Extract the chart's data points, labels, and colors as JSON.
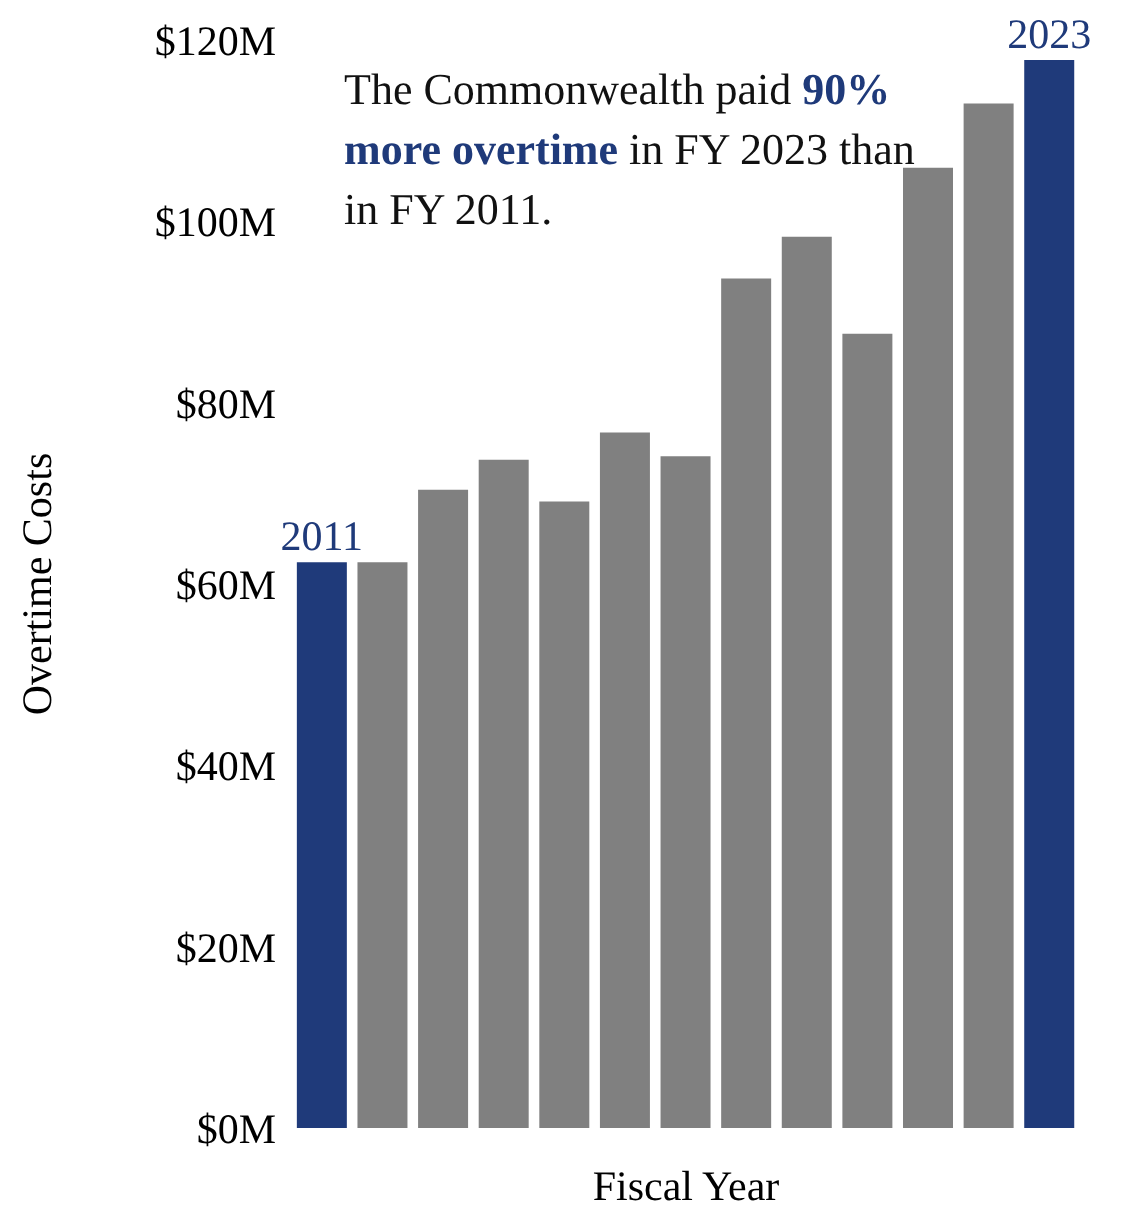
{
  "chart_data": {
    "type": "bar",
    "xlabel": "Fiscal Year",
    "ylabel": "Overtime Costs",
    "categories": [
      "2011",
      null,
      null,
      null,
      null,
      null,
      null,
      null,
      null,
      null,
      null,
      null,
      "2023"
    ],
    "values": [
      62.4,
      62.4,
      70.4,
      73.7,
      69.1,
      76.7,
      74.1,
      93.7,
      98.3,
      87.6,
      105.9,
      113,
      117.8
    ],
    "colors": [
      "#1f3a7a",
      "#808080",
      "#808080",
      "#808080",
      "#808080",
      "#808080",
      "#808080",
      "#808080",
      "#808080",
      "#808080",
      "#808080",
      "#808080",
      "#1f3a7a"
    ],
    "ylim": [
      0,
      120
    ],
    "yticks": [
      {
        "value": 0,
        "label": "$0M"
      },
      {
        "value": 20,
        "label": "$20M"
      },
      {
        "value": 40,
        "label": "$40M"
      },
      {
        "value": 60,
        "label": "$60M"
      },
      {
        "value": 80,
        "label": "$80M"
      },
      {
        "value": 100,
        "label": "$100M"
      },
      {
        "value": 120,
        "label": "$120M"
      }
    ],
    "annotations": [
      "The Commonwealth paid ",
      "90% more overtime",
      " in FY 2023 than in FY 2011."
    ],
    "grid": false,
    "legend": false
  }
}
